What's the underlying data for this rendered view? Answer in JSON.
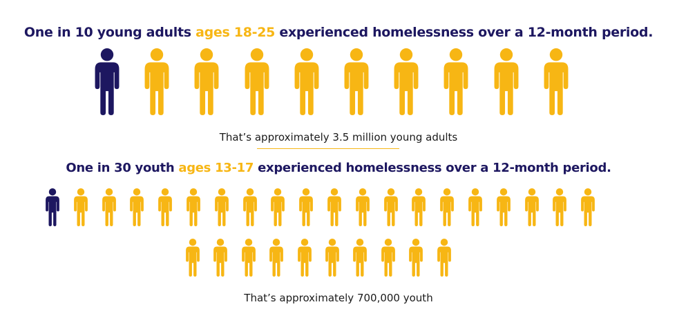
{
  "colors": {
    "navy": "#1d1760",
    "gold": "#f7b614",
    "text": "#1a1a1a"
  },
  "young_adults": {
    "heading_pre": "One in 10 young adults ",
    "heading_accent": "ages 18-25",
    "heading_post": " experienced homelessness over a 12-month period.",
    "caption": "That’s approximately 3.5 million young adults",
    "highlighted_count": 1,
    "total_count": 10
  },
  "youth": {
    "heading_pre": "One in 30 youth ",
    "heading_accent": "ages 13-17",
    "heading_post": " experienced homelessness over a 12-month period.",
    "caption": "That’s approximately 700,000 youth",
    "highlighted_count": 1,
    "total_count": 30
  }
}
